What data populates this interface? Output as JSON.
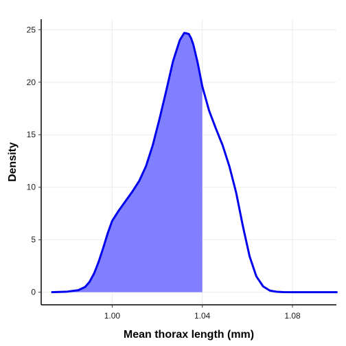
{
  "chart_data": {
    "type": "area",
    "title": "",
    "xlabel": "Mean thorax length (mm)",
    "ylabel": "Density",
    "xlim": [
      0.9685,
      1.0995
    ],
    "ylim": [
      -1.2,
      26.0
    ],
    "x_ticks": [
      1.0,
      1.04,
      1.08
    ],
    "x_tick_labels": [
      "1.00",
      "1.04",
      "1.08"
    ],
    "y_ticks": [
      0,
      5,
      10,
      15,
      20,
      25
    ],
    "y_tick_labels": [
      "0",
      "5",
      "10",
      "15",
      "20",
      "25"
    ],
    "grid": true,
    "legend": "none",
    "series": [
      {
        "x": [
          0.973,
          0.98,
          0.985,
          0.988,
          0.99,
          0.992,
          0.994,
          0.996,
          0.998,
          1.0,
          1.003,
          1.006,
          1.009,
          1.012,
          1.015,
          1.018,
          1.021,
          1.024,
          1.027,
          1.03,
          1.032,
          1.034,
          1.035,
          1.036,
          1.038,
          1.04,
          1.043,
          1.046,
          1.049,
          1.052,
          1.055,
          1.058,
          1.061,
          1.064,
          1.067,
          1.07,
          1.073,
          1.076,
          1.08,
          1.09,
          1.1
        ],
        "y": [
          0.0,
          0.05,
          0.2,
          0.5,
          1.0,
          1.8,
          2.9,
          4.2,
          5.6,
          6.8,
          7.8,
          8.7,
          9.6,
          10.6,
          12.0,
          14.0,
          16.5,
          19.2,
          22.0,
          24.0,
          24.7,
          24.6,
          24.2,
          23.6,
          21.8,
          19.6,
          17.3,
          15.6,
          14.0,
          12.0,
          9.5,
          6.3,
          3.4,
          1.5,
          0.55,
          0.15,
          0.04,
          0.01,
          0.0,
          0.0,
          0.0
        ],
        "color": "#0000ee",
        "fill_color": "#7f7fff",
        "fill_to_x": 1.04
      }
    ]
  }
}
